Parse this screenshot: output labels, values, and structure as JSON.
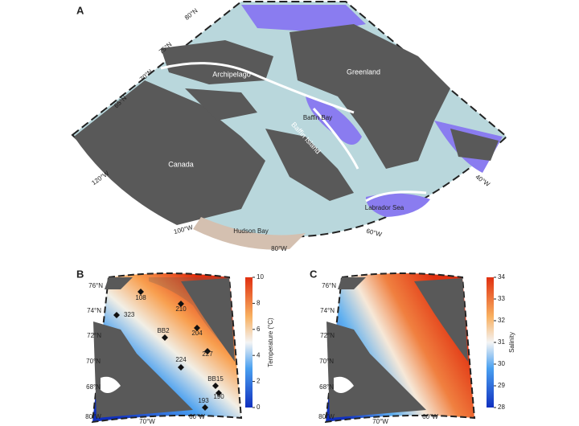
{
  "panel_a": {
    "label": "A",
    "lat_labels": [
      "80°N",
      "75°N",
      "70°N",
      "65°N"
    ],
    "lon_labels": [
      "120°W",
      "100°W",
      "80°W",
      "60°W",
      "40°W"
    ],
    "place_labels": [
      "Greenland",
      "Archipelago",
      "Baffin Bay",
      "Canada",
      "Baffin Island",
      "Hudson Bay",
      "Labrador Sea"
    ]
  },
  "panel_b": {
    "label": "B",
    "lat_labels": [
      "76°N",
      "74°N",
      "72°N",
      "70°N",
      "68°N"
    ],
    "lon_labels": [
      "80°W",
      "70°W",
      "60°W"
    ],
    "stations": [
      "108",
      "210",
      "323",
      "204",
      "BB2",
      "227",
      "224",
      "BB15",
      "193",
      "190"
    ],
    "colorbar": {
      "title": "Temperature (°C)",
      "lim": [
        0,
        10
      ],
      "ticks": [
        0,
        2,
        4,
        6,
        8,
        10
      ]
    }
  },
  "panel_c": {
    "label": "C",
    "lat_labels": [
      "76°N",
      "74°N",
      "72°N",
      "70°N",
      "68°N"
    ],
    "lon_labels": [
      "80°W",
      "70°W",
      "60°W"
    ],
    "colorbar": {
      "title": "Salinity",
      "lim": [
        28,
        34
      ],
      "ticks": [
        28,
        29,
        30,
        31,
        32,
        33,
        34
      ]
    }
  }
}
